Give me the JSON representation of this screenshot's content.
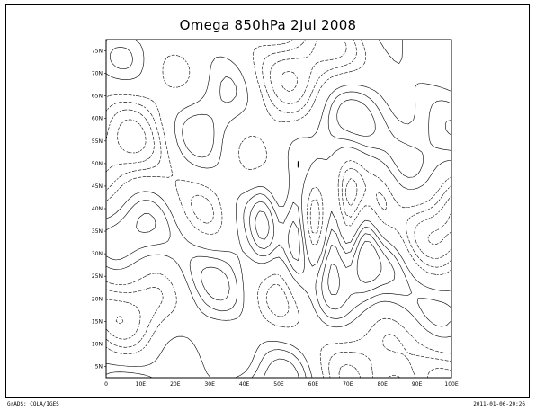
{
  "title": "Omega 850hPa 2Jul 2008",
  "credit": "GrADS: COLA/IGES",
  "timestamp": "2011-01-06-20:26",
  "map": {
    "lat_ticks": [
      "5N",
      "10N",
      "15N",
      "20N",
      "25N",
      "30N",
      "35N",
      "40N",
      "45N",
      "50N",
      "55N",
      "60N",
      "65N",
      "70N",
      "75N"
    ],
    "lon_ticks": [
      "0",
      "10E",
      "20E",
      "30E",
      "40E",
      "50E",
      "60E",
      "70E",
      "80E",
      "90E",
      "100E"
    ],
    "contour_style": "solid positive contours, dashed negative contours",
    "line_color": "#000000"
  }
}
